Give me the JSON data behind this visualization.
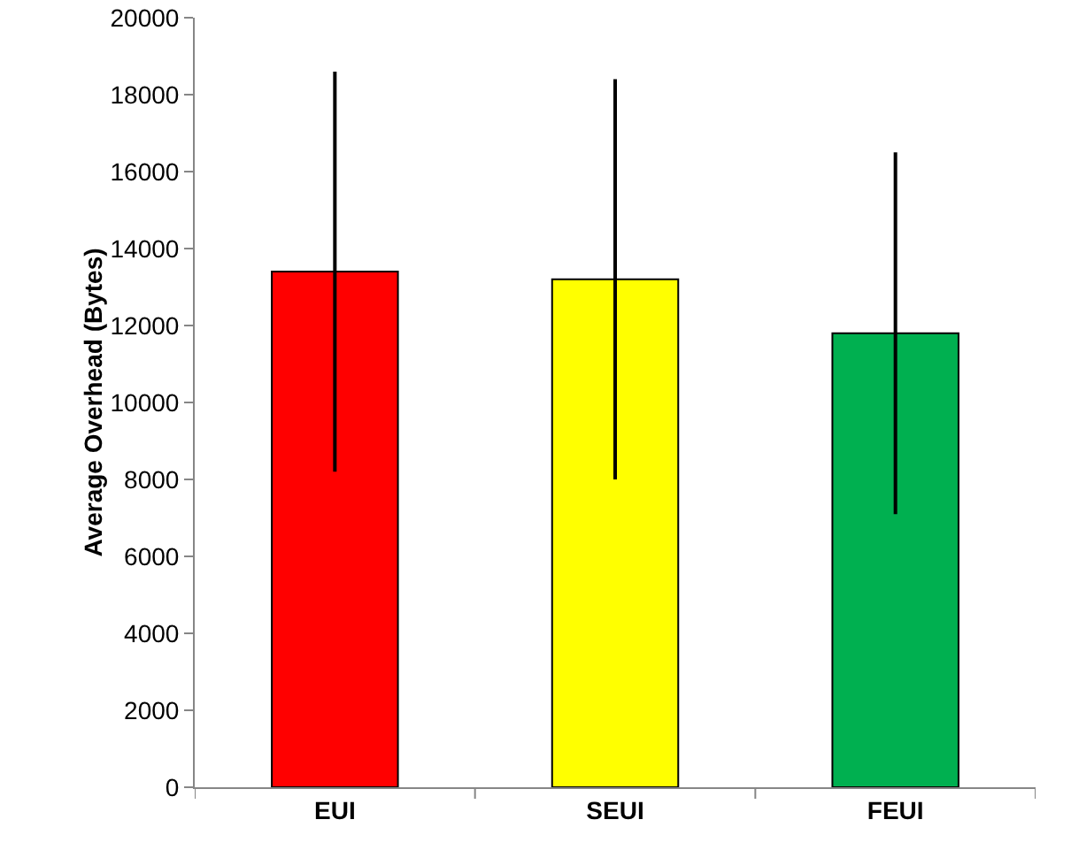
{
  "chart_data": {
    "type": "bar",
    "ylabel": "Average Overhead (Bytes)",
    "categories": [
      "EUI",
      "SEUI",
      "FEUI"
    ],
    "values": [
      13400,
      13200,
      11800
    ],
    "colors": [
      "#ff0000",
      "#ffff00",
      "#00b050"
    ],
    "errors": [
      5200,
      5200,
      4700
    ],
    "ylim": [
      0,
      20000
    ],
    "yticks": [
      0,
      2000,
      4000,
      6000,
      8000,
      10000,
      12000,
      14000,
      16000,
      18000,
      20000
    ],
    "grid": false
  }
}
